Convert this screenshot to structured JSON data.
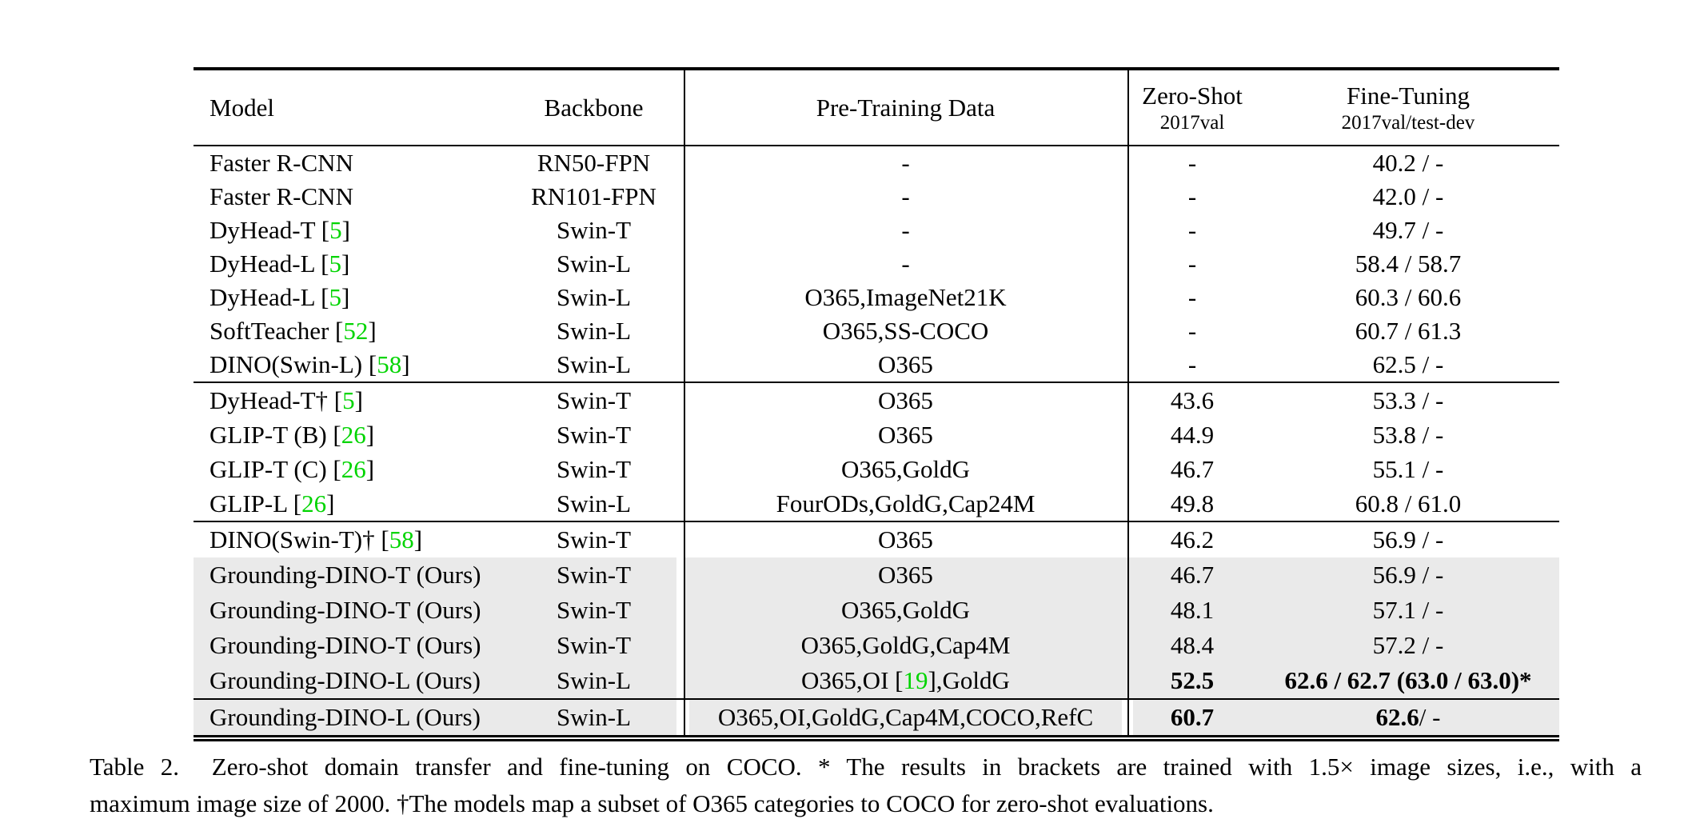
{
  "colors": {
    "citation_green": "#00d400",
    "highlight_gray": "#eaeaea",
    "text": "#000000",
    "background": "#ffffff"
  },
  "table": {
    "columns": [
      {
        "label": "Model"
      },
      {
        "label": "Backbone"
      },
      {
        "label": "Pre-Training Data"
      },
      {
        "label": "Zero-Shot",
        "sublabel": "2017val"
      },
      {
        "label": "Fine-Tuning",
        "sublabel": "2017val/test-dev"
      }
    ],
    "groups": [
      {
        "rows": [
          {
            "model": "Faster R-CNN",
            "backbone": "RN50-FPN",
            "pretrain": "-",
            "zs": "-",
            "ft": "40.2 / -"
          },
          {
            "model": "Faster R-CNN",
            "backbone": "RN101-FPN",
            "pretrain": "-",
            "zs": "-",
            "ft": "42.0 / -"
          },
          {
            "model": "DyHead-T [5]",
            "backbone": "Swin-T",
            "pretrain": "-",
            "zs": "-",
            "ft": "49.7 / -"
          },
          {
            "model": "DyHead-L [5]",
            "backbone": "Swin-L",
            "pretrain": "-",
            "zs": "-",
            "ft": "58.4 / 58.7"
          },
          {
            "model": "DyHead-L [5]",
            "backbone": "Swin-L",
            "pretrain": "O365,ImageNet21K",
            "zs": "-",
            "ft": "60.3 / 60.6"
          },
          {
            "model": "SoftTeacher [52]",
            "backbone": "Swin-L",
            "pretrain": "O365,SS-COCO",
            "zs": "-",
            "ft": "60.7 / 61.3"
          },
          {
            "model": "DINO(Swin-L) [58]",
            "backbone": "Swin-L",
            "pretrain": "O365",
            "zs": "-",
            "ft": "62.5 / -"
          }
        ]
      },
      {
        "rows": [
          {
            "model": "DyHead-T† [5]",
            "backbone": "Swin-T",
            "pretrain": "O365",
            "zs": "43.6",
            "ft": "53.3 / -"
          },
          {
            "model": "GLIP-T (B) [26]",
            "backbone": "Swin-T",
            "pretrain": "O365",
            "zs": "44.9",
            "ft": "53.8 / -"
          },
          {
            "model": "GLIP-T (C) [26]",
            "backbone": "Swin-T",
            "pretrain": "O365,GoldG",
            "zs": "46.7",
            "ft": "55.1 / -"
          },
          {
            "model": "GLIP-L [26]",
            "backbone": "Swin-L",
            "pretrain": "FourODs,GoldG,Cap24M",
            "zs": "49.8",
            "ft": "60.8 / 61.0"
          }
        ]
      },
      {
        "rows": [
          {
            "model": "DINO(Swin-T)† [58]",
            "backbone": "Swin-T",
            "pretrain": "O365",
            "zs": "46.2",
            "ft": "56.9 / -"
          },
          {
            "model": "Grounding-DINO-T (Ours)",
            "backbone": "Swin-T",
            "pretrain": "O365",
            "zs": "46.7",
            "ft": "56.9 / -",
            "hl": true
          },
          {
            "model": "Grounding-DINO-T (Ours)",
            "backbone": "Swin-T",
            "pretrain": "O365,GoldG",
            "zs": "48.1",
            "ft": "57.1 / -",
            "hl": true
          },
          {
            "model": "Grounding-DINO-T (Ours)",
            "backbone": "Swin-T",
            "pretrain": "O365,GoldG,Cap4M",
            "zs": "48.4",
            "ft": "57.2 / -",
            "hl": true
          },
          {
            "model": "Grounding-DINO-L (Ours)",
            "backbone": "Swin-L",
            "pretrain": "O365,OI [19],GoldG",
            "zs": "52.5",
            "zs_bold": true,
            "ft_bold": "62.6 / 62.7 (63.0 / 63.0)*",
            "ft": "",
            "hl": true
          }
        ]
      },
      {
        "rows": [
          {
            "model": "Grounding-DINO-L (Ours)",
            "backbone": "Swin-L",
            "pretrain": "O365,OI,GoldG,Cap4M,COCO,RefC",
            "zs": "60.7",
            "zs_bold": true,
            "ft_bold": "62.6",
            "ft": " / -",
            "hl": true
          }
        ]
      }
    ]
  },
  "caption": {
    "line1": "Table 2.  Zero-shot domain transfer and fine-tuning on COCO. * The results in brackets are trained with 1.5× image sizes, i.e., with a",
    "line2": "maximum image size of 2000. †The models map a subset of O365 categories to COCO for zero-shot evaluations."
  }
}
